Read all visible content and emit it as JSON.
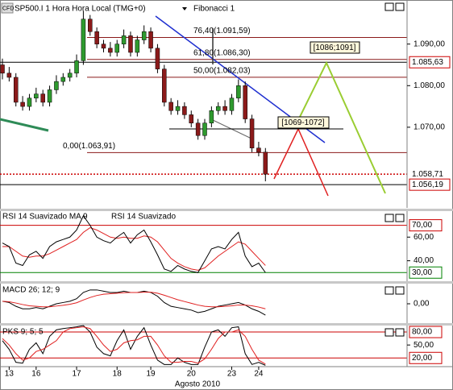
{
  "chart_data": [
    {
      "type": "candlestick",
      "badge": "CFD",
      "title": "SP500.I 1 Hora Hora Local (TMG+0)",
      "subtitle": "Fibonacci 1",
      "open": [
        1085,
        1083,
        1082,
        1076,
        1075,
        1077,
        1078,
        1076,
        1079,
        1081,
        1082,
        1083,
        1086,
        1096,
        1093,
        1090,
        1089,
        1088,
        1090,
        1092,
        1088,
        1091,
        1093,
        1089,
        1084,
        1076,
        1074,
        1075,
        1073,
        1071,
        1068,
        1071,
        1074,
        1075,
        1074,
        1077,
        1080,
        1072,
        1065,
        1064
      ],
      "high": [
        1086.5,
        1084.5,
        1083,
        1077.5,
        1078,
        1079.5,
        1079,
        1080,
        1082.5,
        1083,
        1084,
        1087.5,
        1098,
        1097,
        1094,
        1091,
        1090.5,
        1091,
        1093.5,
        1093,
        1092,
        1094.5,
        1094,
        1090,
        1085,
        1077,
        1076.5,
        1076,
        1074,
        1072,
        1072,
        1075,
        1076,
        1076.5,
        1078,
        1081.5,
        1081,
        1073,
        1066.5,
        1065
      ],
      "low": [
        1081.5,
        1081,
        1075,
        1074,
        1074,
        1076,
        1075,
        1075,
        1078,
        1080,
        1081,
        1082,
        1085,
        1092,
        1089,
        1088,
        1087,
        1087,
        1089,
        1087,
        1087,
        1090,
        1088,
        1083,
        1075,
        1073,
        1073,
        1072,
        1070,
        1067,
        1067,
        1070,
        1073,
        1073,
        1073,
        1076,
        1071,
        1064,
        1063,
        1057
      ],
      "close": [
        1083,
        1082,
        1076,
        1075,
        1077,
        1078,
        1076,
        1079,
        1081,
        1082,
        1083,
        1086,
        1096,
        1093,
        1090,
        1089,
        1088,
        1090,
        1092,
        1088,
        1091,
        1093,
        1089,
        1084,
        1076,
        1074,
        1075,
        1073,
        1071,
        1068,
        1071,
        1074,
        1075,
        1074,
        1077,
        1080,
        1072,
        1065,
        1064,
        1058.71
      ],
      "up_color": "#2e9a2e",
      "down_color": "#8b1a1a",
      "xlim": [
        0,
        60
      ],
      "xticks": [
        {
          "value": 1,
          "label": "13"
        },
        {
          "value": 5,
          "label": "16"
        },
        {
          "value": 11,
          "label": "17"
        },
        {
          "value": 17,
          "label": "18"
        },
        {
          "value": 22,
          "label": "19"
        },
        {
          "value": 28,
          "label": "20"
        },
        {
          "value": 34,
          "label": "23"
        },
        {
          "value": 38,
          "label": "24"
        }
      ],
      "x_label": "Agosto 2010",
      "ylim": [
        1050.6,
        1100.6
      ],
      "yticks": [
        {
          "value": 1070,
          "label": "1.070,00"
        },
        {
          "value": 1080,
          "label": "1.080,00"
        },
        {
          "value": 1090,
          "label": "1.090,00"
        }
      ],
      "fib_levels": [
        {
          "value": 1091.59,
          "label": "76,40(1.091,59)"
        },
        {
          "value": 1086.3,
          "label": "61,80(1.086,30)"
        },
        {
          "value": 1082.03,
          "label": "50,00(1.082,03)"
        },
        {
          "value": 1063.91,
          "label": "0,00(1.063,91)"
        }
      ],
      "fib_color": "#8b1a1a",
      "price_marks": [
        {
          "value": 1085.63,
          "label": "1.085,63",
          "line_color": "#000000",
          "boxed": true
        },
        {
          "value": 1058.71,
          "label": "1.058,71",
          "line_color": "#cc0000",
          "boxed": false
        },
        {
          "value": 1056.19,
          "label": "1.056,19",
          "line_color": "#000000",
          "boxed": true
        }
      ],
      "annotations": [
        "[1086;1091]",
        "[1069-1072]"
      ]
    },
    {
      "type": "line",
      "series": [
        {
          "name": "RSI 14 Suavizado MA 9",
          "color": "#e02020",
          "values": [
            52,
            52,
            48,
            44,
            43,
            44,
            44,
            46,
            49,
            52,
            55,
            58,
            64,
            68,
            66,
            63,
            60,
            59,
            60,
            59,
            59,
            61,
            60,
            56,
            49,
            42,
            38,
            35,
            33,
            32,
            34,
            39,
            44,
            48,
            52,
            56,
            54,
            48,
            42,
            36
          ]
        },
        {
          "name": "RSI 14 Suavizado",
          "color": "#000000",
          "values": [
            55,
            52,
            38,
            36,
            45,
            48,
            42,
            52,
            56,
            58,
            60,
            66,
            78,
            70,
            60,
            57,
            55,
            60,
            64,
            55,
            62,
            66,
            56,
            45,
            33,
            31,
            36,
            33,
            31,
            30,
            40,
            50,
            52,
            50,
            58,
            64,
            44,
            35,
            38,
            30
          ]
        }
      ],
      "ylim": [
        22,
        82
      ],
      "yticks": [
        {
          "value": 40,
          "label": "40,00"
        },
        {
          "value": 60,
          "label": "60,00"
        }
      ],
      "levels": [
        {
          "value": 70,
          "label": "70,00",
          "color": "#cc0000"
        },
        {
          "value": 30,
          "label": "30,00",
          "color": "#008000"
        }
      ]
    },
    {
      "type": "line",
      "title": "MACD 26; 12; 9",
      "series": [
        {
          "color": "#000000",
          "values": [
            1,
            0.5,
            -1,
            -2,
            -2,
            -1.5,
            -2,
            -1,
            0,
            0.5,
            1,
            2,
            4.5,
            5.5,
            5.5,
            5,
            4.5,
            4.5,
            5,
            4.5,
            4.5,
            5,
            4.5,
            3,
            0.5,
            -1,
            -1.5,
            -2,
            -2.5,
            -3.5,
            -3,
            -2,
            -1,
            -0.5,
            0,
            0.5,
            -0.5,
            -2,
            -3,
            -4.5
          ]
        },
        {
          "color": "#e02020",
          "values": [
            1,
            0.8,
            0.3,
            -0.3,
            -0.8,
            -1,
            -1.2,
            -1.2,
            -0.9,
            -0.6,
            -0.2,
            0.4,
            1.5,
            2.5,
            3.3,
            3.8,
            4,
            4.2,
            4.4,
            4.5,
            4.5,
            4.6,
            4.6,
            4.2,
            3.4,
            2.5,
            1.6,
            0.9,
            0.2,
            -0.5,
            -1,
            -1.2,
            -1.2,
            -1,
            -0.8,
            -0.5,
            -0.5,
            -0.8,
            -1.3,
            -2
          ]
        }
      ],
      "ylim": [
        -8,
        8
      ],
      "yticks": [
        {
          "value": 0,
          "label": "0,00"
        }
      ]
    },
    {
      "type": "line",
      "title": "PKS 9; 5; 5",
      "series": [
        {
          "color": "#000000",
          "values": [
            60,
            40,
            10,
            8,
            40,
            55,
            30,
            70,
            85,
            88,
            90,
            92,
            95,
            80,
            45,
            30,
            25,
            60,
            85,
            40,
            70,
            90,
            50,
            15,
            5,
            5,
            20,
            10,
            5,
            5,
            45,
            80,
            85,
            70,
            90,
            92,
            30,
            5,
            10,
            3
          ]
        },
        {
          "color": "#e02020",
          "values": [
            65,
            50,
            30,
            15,
            20,
            35,
            40,
            50,
            60,
            80,
            88,
            90,
            92,
            88,
            70,
            50,
            35,
            40,
            55,
            60,
            62,
            70,
            70,
            50,
            25,
            10,
            10,
            12,
            12,
            8,
            18,
            40,
            65,
            80,
            80,
            85,
            70,
            40,
            15,
            6
          ]
        }
      ],
      "ylim": [
        0,
        95
      ],
      "yticks": [
        {
          "value": 50,
          "label": "50,00"
        }
      ],
      "levels": [
        {
          "value": 80,
          "label": "80,00",
          "color": "#cc0000"
        },
        {
          "value": 20,
          "label": "20,00",
          "color": "#cc0000"
        }
      ]
    }
  ]
}
